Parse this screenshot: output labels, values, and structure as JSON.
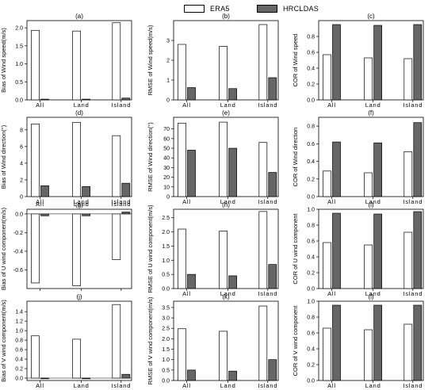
{
  "legend": {
    "items": [
      {
        "label": "ERA5",
        "color": "#ffffff"
      },
      {
        "label": "HRCLDAS",
        "color": "#666666"
      }
    ]
  },
  "chart_data": [
    {
      "type": "bar",
      "panel": "(a)",
      "title": "(a)",
      "ylabel": "Bias of Wind speed(m/s)",
      "categories": [
        "All",
        "Land",
        "Island"
      ],
      "ylim": [
        0,
        2.2
      ],
      "yticks": [
        0.0,
        0.5,
        1.0,
        1.5,
        2.0
      ],
      "tick_format": "0.0",
      "series": [
        {
          "name": "ERA5",
          "values": [
            1.93,
            1.91,
            2.14
          ]
        },
        {
          "name": "HRCLDAS",
          "values": [
            0.02,
            0.02,
            0.05
          ]
        }
      ]
    },
    {
      "type": "bar",
      "panel": "(b)",
      "title": "(b)",
      "ylabel": "RMSE of Wind speed(m/s)",
      "categories": [
        "All",
        "Land",
        "Island"
      ],
      "ylim": [
        0,
        4.0
      ],
      "yticks": [
        0,
        1,
        2,
        3
      ],
      "tick_format": "0",
      "series": [
        {
          "name": "ERA5",
          "values": [
            2.8,
            2.7,
            3.8
          ]
        },
        {
          "name": "HRCLDAS",
          "values": [
            0.62,
            0.57,
            1.12
          ]
        }
      ]
    },
    {
      "type": "bar",
      "panel": "(c)",
      "title": "(c)",
      "ylabel": "COR of Wind speed",
      "categories": [
        "All",
        "Land",
        "Island"
      ],
      "ylim": [
        0,
        1.0
      ],
      "yticks": [
        0.0,
        0.2,
        0.4,
        0.6,
        0.8
      ],
      "tick_format": "0.0",
      "series": [
        {
          "name": "ERA5",
          "values": [
            0.57,
            0.53,
            0.52
          ]
        },
        {
          "name": "HRCLDAS",
          "values": [
            0.95,
            0.94,
            0.95
          ]
        }
      ]
    },
    {
      "type": "bar",
      "panel": "(d)",
      "title": "(d)",
      "ylabel": "Bias of Wind direction(°)",
      "categories": [
        "All",
        "Land",
        "Island"
      ],
      "ylim": [
        0,
        9.5
      ],
      "yticks": [
        0,
        2,
        4,
        6,
        8
      ],
      "tick_format": "0",
      "series": [
        {
          "name": "ERA5",
          "values": [
            8.7,
            8.9,
            7.3
          ]
        },
        {
          "name": "HRCLDAS",
          "values": [
            1.3,
            1.2,
            1.6
          ]
        }
      ]
    },
    {
      "type": "bar",
      "panel": "(e)",
      "title": "(e)",
      "ylabel": "RMSE of Wind direction(°)",
      "categories": [
        "All",
        "Land",
        "Island"
      ],
      "ylim": [
        0,
        82
      ],
      "yticks": [
        0,
        10,
        20,
        30,
        40,
        50,
        60,
        70
      ],
      "tick_format": "0",
      "series": [
        {
          "name": "ERA5",
          "values": [
            76,
            77,
            56
          ]
        },
        {
          "name": "HRCLDAS",
          "values": [
            48,
            50,
            25
          ]
        }
      ]
    },
    {
      "type": "bar",
      "panel": "(f)",
      "title": "(f)",
      "ylabel": "COR of Wind direction",
      "categories": [
        "All",
        "Land",
        "Island"
      ],
      "ylim": [
        0,
        0.9
      ],
      "yticks": [
        0.0,
        0.2,
        0.4,
        0.6,
        0.8
      ],
      "tick_format": "0.0",
      "series": [
        {
          "name": "ERA5",
          "values": [
            0.29,
            0.27,
            0.51
          ]
        },
        {
          "name": "HRCLDAS",
          "values": [
            0.62,
            0.61,
            0.84
          ]
        }
      ]
    },
    {
      "type": "bar",
      "panel": "(g)",
      "title": "(g)",
      "ylabel": "Bias of U wind component(m/s)",
      "categories": [
        "All",
        "Land",
        "Island"
      ],
      "ylim": [
        -0.8,
        0.05
      ],
      "yticks": [
        -0.6,
        -0.4,
        -0.2,
        0.0
      ],
      "tick_format": "0.0",
      "cat_at_top": true,
      "series": [
        {
          "name": "ERA5",
          "values": [
            -0.74,
            -0.77,
            -0.49
          ]
        },
        {
          "name": "HRCLDAS",
          "values": [
            -0.02,
            -0.02,
            0.02
          ]
        }
      ]
    },
    {
      "type": "bar",
      "panel": "(h)",
      "title": "(h)",
      "ylabel": "RMSE of U wind component(m/s)",
      "categories": [
        "All",
        "Land",
        "Island"
      ],
      "ylim": [
        0,
        2.8
      ],
      "yticks": [
        0.0,
        0.5,
        1.0,
        1.5,
        2.0,
        2.5
      ],
      "tick_format": "0.0",
      "series": [
        {
          "name": "ERA5",
          "values": [
            2.1,
            2.03,
            2.72
          ]
        },
        {
          "name": "HRCLDAS",
          "values": [
            0.5,
            0.45,
            0.85
          ]
        }
      ]
    },
    {
      "type": "bar",
      "panel": "(i)",
      "title": "(i)",
      "ylabel": "COR of U wind component",
      "categories": [
        "All",
        "Land",
        "Island"
      ],
      "ylim": [
        0,
        1.0
      ],
      "yticks": [
        0.0,
        0.2,
        0.4,
        0.6,
        0.8,
        1.0
      ],
      "tick_format": "0.0",
      "series": [
        {
          "name": "ERA5",
          "values": [
            0.58,
            0.55,
            0.71
          ]
        },
        {
          "name": "HRCLDAS",
          "values": [
            0.95,
            0.94,
            0.97
          ]
        }
      ]
    },
    {
      "type": "bar",
      "panel": "(j)",
      "title": "(j)",
      "ylabel": "Bias of V wind component(m/s)",
      "categories": [
        "All",
        "Land",
        "Island"
      ],
      "ylim": [
        -0.05,
        1.62
      ],
      "yticks": [
        0.0,
        0.2,
        0.4,
        0.6,
        0.8,
        1.0,
        1.2,
        1.4
      ],
      "tick_format": "0.0",
      "series": [
        {
          "name": "ERA5",
          "values": [
            0.89,
            0.82,
            1.55
          ]
        },
        {
          "name": "HRCLDAS",
          "values": [
            -0.01,
            -0.01,
            0.08
          ]
        }
      ]
    },
    {
      "type": "bar",
      "panel": "(k)",
      "title": "(k)",
      "ylabel": "RMSE of V wind component(m/s)",
      "categories": [
        "All",
        "Land",
        "Island"
      ],
      "ylim": [
        0,
        3.8
      ],
      "yticks": [
        0.0,
        0.5,
        1.0,
        1.5,
        2.0,
        2.5,
        3.0,
        3.5
      ],
      "tick_format": "0.0",
      "series": [
        {
          "name": "ERA5",
          "values": [
            2.48,
            2.36,
            3.57
          ]
        },
        {
          "name": "HRCLDAS",
          "values": [
            0.5,
            0.45,
            1.0
          ]
        }
      ]
    },
    {
      "type": "bar",
      "panel": "(l)",
      "title": "(l)",
      "ylabel": "COR of V wind component",
      "categories": [
        "All",
        "Land",
        "Island"
      ],
      "ylim": [
        0,
        1.0
      ],
      "yticks": [
        0.0,
        0.2,
        0.4,
        0.6,
        0.8,
        1.0
      ],
      "tick_format": "0.0",
      "series": [
        {
          "name": "ERA5",
          "values": [
            0.66,
            0.64,
            0.71
          ]
        },
        {
          "name": "HRCLDAS",
          "values": [
            0.95,
            0.95,
            0.95
          ]
        }
      ]
    }
  ]
}
